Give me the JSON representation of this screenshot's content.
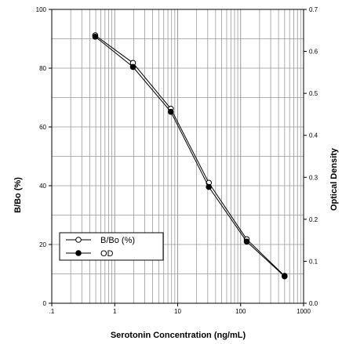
{
  "chart_data": {
    "type": "line",
    "title": "",
    "xlabel": "Serotonin Concentration (ng/mL)",
    "ylabel": "B/Bo (%)",
    "y2label": "Optical Density",
    "x_scale": "log",
    "xlim": [
      0.1,
      1000
    ],
    "ylim": [
      0,
      100
    ],
    "y2lim": [
      0,
      0.7
    ],
    "x_ticks": [
      0.1,
      1,
      10,
      100,
      1000
    ],
    "x_tick_labels": [
      ".1",
      "1",
      "10",
      "100",
      "1000"
    ],
    "y_ticks": [
      0,
      20,
      40,
      60,
      80,
      100
    ],
    "y_tick_labels": [
      "0",
      "20",
      "40",
      "60",
      "80",
      "100"
    ],
    "y2_ticks": [
      0,
      0.1,
      0.2,
      0.3,
      0.4,
      0.5,
      0.6,
      0.7
    ],
    "y2_tick_labels": [
      "0.0",
      "0.1",
      "0.2",
      "0.3",
      "0.4",
      "0.5",
      "0.6",
      "0.7"
    ],
    "grid": true,
    "legend_position": "bottom-left",
    "series": [
      {
        "name": "B/Bo (%)",
        "axis": "left",
        "marker": "open-circle",
        "x": [
          0.49,
          1.95,
          7.8,
          31.25,
          125,
          500
        ],
        "values": [
          91.2,
          81.8,
          66.2,
          41.0,
          21.8,
          9.3
        ]
      },
      {
        "name": "OD",
        "axis": "right",
        "marker": "filled-circle",
        "x": [
          0.49,
          1.95,
          7.8,
          31.25,
          125,
          500
        ],
        "values": [
          0.635,
          0.563,
          0.456,
          0.277,
          0.147,
          0.064
        ]
      }
    ]
  }
}
